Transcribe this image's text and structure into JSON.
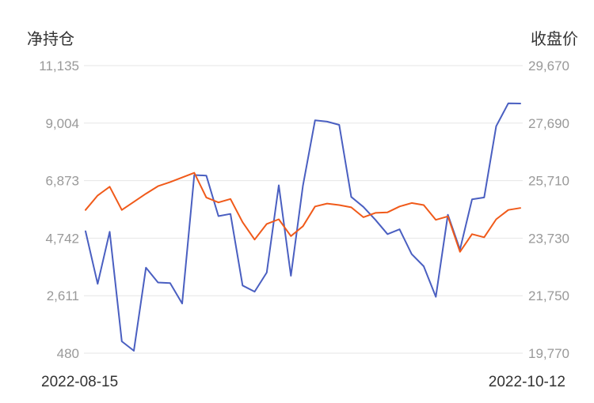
{
  "chart_data": {
    "type": "line",
    "left_axis_title": "净持仓",
    "right_axis_title": "收盘价",
    "left_ticks": [
      "11,135",
      "9,004",
      "6,873",
      "4,742",
      "2,611",
      "480"
    ],
    "right_ticks": [
      "29,670",
      "27,690",
      "25,710",
      "23,730",
      "21,750",
      "19,770"
    ],
    "left_ylim": [
      480,
      11135
    ],
    "right_ylim": [
      19770,
      29670
    ],
    "x_start_label": "2022-08-15",
    "x_end_label": "2022-10-12",
    "grid": true,
    "series": [
      {
        "axis": "left",
        "color": "#4a5fc1",
        "values": [
          5000,
          3050,
          4980,
          920,
          570,
          3650,
          3100,
          3080,
          2320,
          7080,
          7060,
          5560,
          5640,
          2990,
          2760,
          3470,
          6700,
          3350,
          6690,
          9110,
          9060,
          8940,
          6270,
          5900,
          5420,
          4890,
          5070,
          4150,
          3700,
          2570,
          5610,
          4320,
          6180,
          6250,
          8890,
          9740,
          9730
        ]
      },
      {
        "axis": "right",
        "color": "#f05a1a",
        "values": [
          24700,
          25200,
          25500,
          24700,
          24980,
          25260,
          25520,
          25660,
          25820,
          25980,
          25130,
          24960,
          25080,
          24280,
          23680,
          24220,
          24380,
          23800,
          24140,
          24820,
          24920,
          24870,
          24790,
          24450,
          24600,
          24620,
          24820,
          24940,
          24870,
          24360,
          24480,
          23260,
          23870,
          23760,
          24380,
          24700,
          24770
        ]
      }
    ]
  }
}
